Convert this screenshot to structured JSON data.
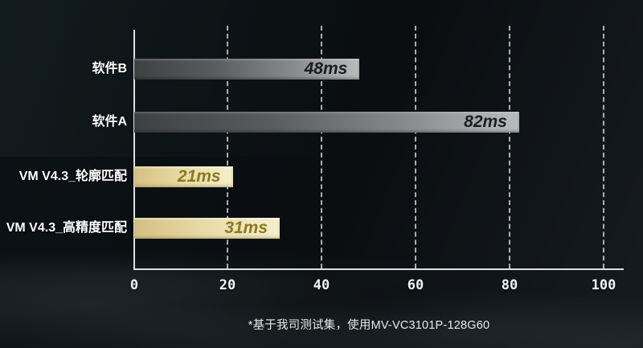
{
  "chart_data": {
    "type": "bar",
    "orientation": "horizontal",
    "title": "",
    "categories": [
      "软件B",
      "软件A",
      "VM V4.3_轮廓匹配",
      "VM V4.3_高精度匹配"
    ],
    "values": [
      48,
      82,
      21,
      31
    ],
    "value_labels": [
      "48ms",
      "82ms",
      "21ms",
      "31ms"
    ],
    "unit": "ms",
    "bar_styles": [
      "gray",
      "gray",
      "gold",
      "gold"
    ],
    "x_ticks": [
      "0",
      "20",
      "40",
      "60",
      "80",
      "100"
    ],
    "xlim": [
      0,
      100
    ],
    "xlabel": "",
    "ylabel": "",
    "grid": "vertical-dashed",
    "legend": "none",
    "footnote": "*基于我司测试集，使用MV-VC3101P-128G60"
  },
  "colors": {
    "background_dark": "#0a0e11",
    "axis_line": "#dbe1e4",
    "gridline": "#dee6e9",
    "gray_bar_start": "#3e4041",
    "gray_bar_end": "#b9bbbc",
    "gray_bar_text": "#1d1d1d",
    "gold_bar_start": "#d5bf82",
    "gold_bar_end": "#f3eecb",
    "gold_bar_text": "#8d7820",
    "label_text": "#ffffff",
    "tick_text": "#f2f5f6",
    "footnote_text": "#e9ebec"
  }
}
